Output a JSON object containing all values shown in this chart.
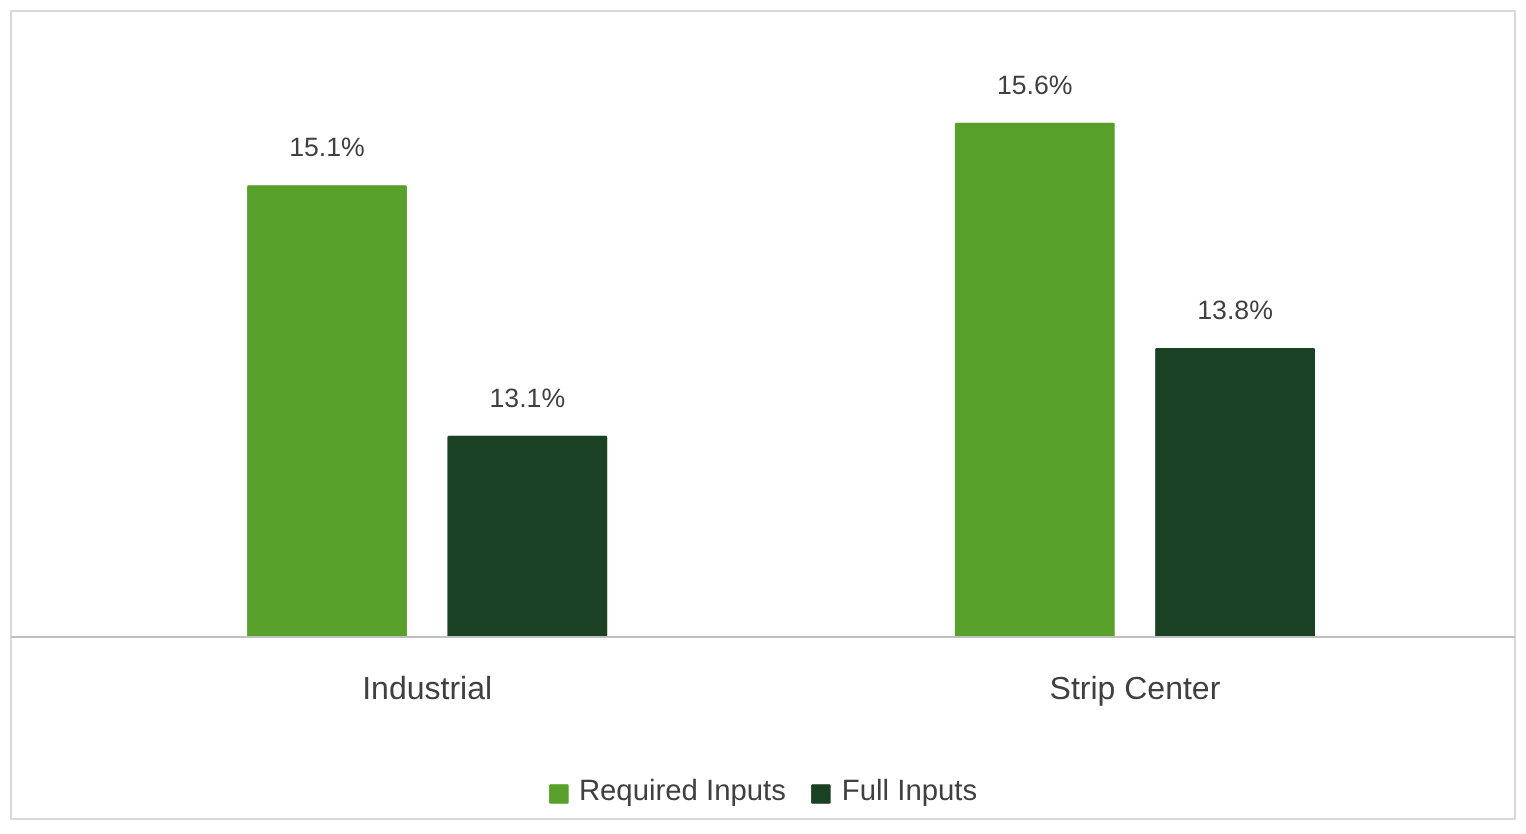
{
  "chart_data": {
    "type": "bar",
    "categories": [
      "Industrial",
      "Strip Center"
    ],
    "series": [
      {
        "name": "Required Inputs",
        "color": "#57a02a",
        "values": [
          15.1,
          15.6
        ],
        "value_labels": [
          "15.1%",
          "15.6%"
        ]
      },
      {
        "name": "Full Inputs",
        "color": "#1b4125",
        "values": [
          13.1,
          13.8
        ],
        "value_labels": [
          "13.1%",
          "13.8%"
        ]
      }
    ],
    "ylim": [
      11.5,
      16.5
    ],
    "legend": "bottom",
    "tick_labels": "x"
  }
}
